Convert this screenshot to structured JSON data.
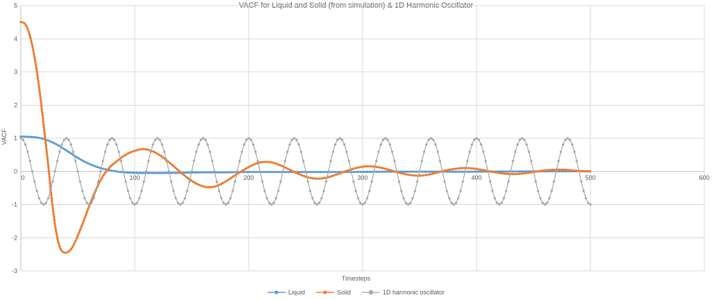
{
  "chart_data": {
    "type": "line",
    "title": "VACF for Liquid and Solid (from simulation) & 1D Harmonic Oscillator",
    "xlabel": "Timesteps",
    "ylabel": "VACF",
    "x_axis": {
      "min": 0,
      "max": 600,
      "ticks": [
        0,
        100,
        200,
        300,
        400,
        500,
        600
      ]
    },
    "y_axis": {
      "min": -3,
      "max": 5,
      "ticks": [
        5,
        4,
        3,
        2,
        1,
        0,
        -1,
        -2,
        -3
      ]
    },
    "grid": true,
    "legend_position": "bottom",
    "colors": {
      "grid": "#d9d9d9",
      "axis": "#bfbfbf",
      "text": "#595959",
      "background": "#ffffff"
    },
    "series": [
      {
        "name": "Liquid",
        "color": "#5B9BD5",
        "marker": "circle",
        "points": [
          [
            0,
            1.05
          ],
          [
            8,
            1.04
          ],
          [
            16,
            1.01
          ],
          [
            24,
            0.93
          ],
          [
            32,
            0.8
          ],
          [
            40,
            0.63
          ],
          [
            48,
            0.45
          ],
          [
            56,
            0.29
          ],
          [
            64,
            0.17
          ],
          [
            72,
            0.08
          ],
          [
            80,
            0.02
          ],
          [
            88,
            -0.02
          ],
          [
            96,
            -0.04
          ],
          [
            104,
            -0.05
          ],
          [
            112,
            -0.05
          ],
          [
            128,
            -0.05
          ],
          [
            144,
            -0.04
          ],
          [
            160,
            -0.03
          ],
          [
            180,
            -0.03
          ],
          [
            200,
            -0.02
          ],
          [
            240,
            -0.02
          ],
          [
            280,
            -0.02
          ],
          [
            320,
            -0.01
          ],
          [
            360,
            -0.01
          ],
          [
            400,
            -0.01
          ],
          [
            450,
            0
          ],
          [
            500,
            0
          ]
        ]
      },
      {
        "name": "Solid",
        "color": "#ED7D31",
        "marker": "circle",
        "points": [
          [
            0,
            4.5
          ],
          [
            3,
            4.47
          ],
          [
            6,
            4.3
          ],
          [
            9,
            3.95
          ],
          [
            12,
            3.45
          ],
          [
            15,
            2.8
          ],
          [
            18,
            2.0
          ],
          [
            21,
            1.1
          ],
          [
            24,
            0.2
          ],
          [
            27,
            -0.8
          ],
          [
            30,
            -1.6
          ],
          [
            33,
            -2.15
          ],
          [
            36,
            -2.4
          ],
          [
            40,
            -2.45
          ],
          [
            44,
            -2.35
          ],
          [
            48,
            -2.1
          ],
          [
            54,
            -1.6
          ],
          [
            60,
            -1.05
          ],
          [
            66,
            -0.55
          ],
          [
            72,
            -0.15
          ],
          [
            78,
            0.12
          ],
          [
            84,
            0.3
          ],
          [
            92,
            0.5
          ],
          [
            100,
            0.62
          ],
          [
            108,
            0.67
          ],
          [
            116,
            0.6
          ],
          [
            124,
            0.44
          ],
          [
            132,
            0.22
          ],
          [
            140,
            -0.02
          ],
          [
            148,
            -0.24
          ],
          [
            156,
            -0.4
          ],
          [
            164,
            -0.48
          ],
          [
            172,
            -0.44
          ],
          [
            180,
            -0.3
          ],
          [
            188,
            -0.12
          ],
          [
            196,
            0.05
          ],
          [
            204,
            0.2
          ],
          [
            212,
            0.28
          ],
          [
            220,
            0.27
          ],
          [
            228,
            0.18
          ],
          [
            236,
            0.05
          ],
          [
            244,
            -0.08
          ],
          [
            252,
            -0.18
          ],
          [
            260,
            -0.22
          ],
          [
            268,
            -0.19
          ],
          [
            276,
            -0.11
          ],
          [
            284,
            -0.01
          ],
          [
            292,
            0.08
          ],
          [
            300,
            0.14
          ],
          [
            308,
            0.15
          ],
          [
            316,
            0.11
          ],
          [
            324,
            0.04
          ],
          [
            332,
            -0.04
          ],
          [
            340,
            -0.1
          ],
          [
            348,
            -0.13
          ],
          [
            356,
            -0.11
          ],
          [
            364,
            -0.05
          ],
          [
            372,
            0.02
          ],
          [
            380,
            0.07
          ],
          [
            388,
            0.1
          ],
          [
            396,
            0.09
          ],
          [
            404,
            0.05
          ],
          [
            412,
            0.0
          ],
          [
            420,
            -0.05
          ],
          [
            428,
            -0.08
          ],
          [
            436,
            -0.08
          ],
          [
            444,
            -0.05
          ],
          [
            452,
            -0.01
          ],
          [
            460,
            0.03
          ],
          [
            468,
            0.05
          ],
          [
            476,
            0.05
          ],
          [
            484,
            0.03
          ],
          [
            492,
            0.01
          ],
          [
            500,
            0.0
          ]
        ]
      },
      {
        "name": "1D harmonic oscillator",
        "color": "#A5A5A5",
        "marker": "diamond",
        "model": {
          "type": "cosine",
          "amplitude": 1.0,
          "period": 40,
          "phase": 0,
          "x_start": 0,
          "x_end": 500,
          "sample_step": 2
        }
      }
    ]
  }
}
